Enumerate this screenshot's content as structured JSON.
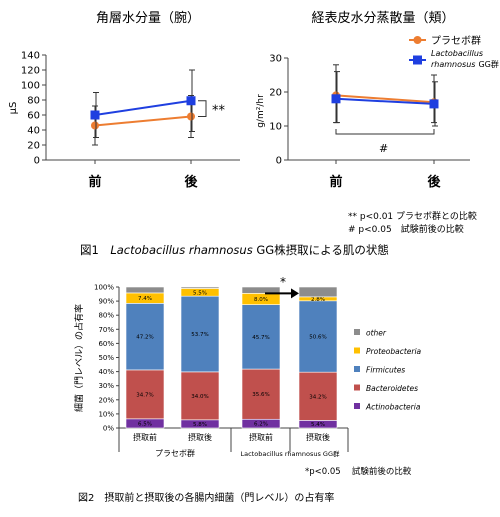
{
  "chart_data": [
    {
      "type": "line",
      "title": "角層水分量（腕）",
      "xlabel": "",
      "ylabel": "μS",
      "categories": [
        "前",
        "後"
      ],
      "ylim": [
        0,
        140
      ],
      "yticks": [
        0,
        20,
        40,
        60,
        80,
        100,
        120,
        140
      ],
      "series": [
        {
          "key": "placebo",
          "values": [
            46,
            58
          ],
          "err_low": [
            20,
            30
          ],
          "err_high": [
            72,
            86
          ],
          "color": "#ed7d31",
          "marker": "circle"
        },
        {
          "key": "lgg",
          "values": [
            60,
            79
          ],
          "err_low": [
            30,
            38
          ],
          "err_high": [
            90,
            120
          ],
          "color": "#1f3fe0",
          "marker": "square"
        }
      ],
      "annotation": "**"
    },
    {
      "type": "line",
      "title": "経表皮水分蒸散量（頬）",
      "xlabel": "",
      "ylabel": "g/m²/hr",
      "categories": [
        "前",
        "後"
      ],
      "ylim": [
        0,
        30
      ],
      "yticks": [
        0,
        10,
        20,
        30
      ],
      "legend_position": "top-right",
      "series": [
        {
          "key": "placebo",
          "name": "プラセボ群",
          "values": [
            19,
            17
          ],
          "err_low": [
            11,
            11
          ],
          "err_high": [
            28,
            25
          ],
          "color": "#ed7d31",
          "marker": "circle"
        },
        {
          "key": "lgg",
          "name": "Lactobacillus rhamnosus GG群",
          "name_line1": "Lactobacillus",
          "name_line2": "rhamnosus",
          "name_suffix": "GG群",
          "values": [
            18,
            16.5
          ],
          "err_low": [
            11,
            10
          ],
          "err_high": [
            26,
            23
          ],
          "color": "#1f3fe0",
          "marker": "square"
        }
      ],
      "annotation": "#"
    },
    {
      "type": "bar",
      "stacked": true,
      "ylabel": "細菌（門レベル）の占有率",
      "ylim": [
        0,
        100
      ],
      "yticks": [
        "0%",
        "10%",
        "20%",
        "30%",
        "40%",
        "50%",
        "60%",
        "70%",
        "80%",
        "90%",
        "100%"
      ],
      "categories": [
        "摂取前",
        "摂取後",
        "摂取前",
        "摂取後"
      ],
      "groups": [
        "プラセボ群",
        "Lactobacillus rhamnosus GG群"
      ],
      "series": [
        {
          "name": "Actinobacteria",
          "color": "#7030a0",
          "values": [
            6.5,
            5.8,
            6.2,
            5.4
          ],
          "labels": [
            "6.5%",
            "5.8%",
            "6.2%",
            "5.4%"
          ]
        },
        {
          "name": "Bacteroidetes",
          "color": "#c0504d",
          "values": [
            34.7,
            34.0,
            35.6,
            34.2
          ],
          "labels": [
            "34.7%",
            "34.0%",
            "35.6%",
            "34.2%"
          ]
        },
        {
          "name": "Firmicutes",
          "color": "#4f81bd",
          "values": [
            47.2,
            53.7,
            45.7,
            50.6
          ],
          "labels": [
            "47.2%",
            "53.7%",
            "45.7%",
            "50.6%"
          ]
        },
        {
          "name": "Proteobacteria",
          "color": "#ffc000",
          "values": [
            7.4,
            5.5,
            8.0,
            2.8
          ],
          "labels": [
            "7.4%",
            "5.5%",
            "8.0%",
            "2.8%"
          ]
        },
        {
          "name": "other",
          "color": "#8c8c8c",
          "values": [
            4.2,
            1.0,
            4.5,
            7.0
          ]
        }
      ],
      "annotation": "*"
    }
  ],
  "notes": {
    "fig1_note1": "** p<0.01 プラセボ群との比較",
    "fig1_note2": "# p<0.05　試験前後の比較",
    "fig2_note": "*p<0.05　 試験前後の比較"
  },
  "captions": {
    "fig1_prefix": "図1　",
    "fig1_italic": "Lactobacillus rhamnosus",
    "fig1_suffix": " GG株摂取による肌の状態",
    "fig2": "図2　摂取前と摂取後の各腸内細菌（門レベル）の占有率"
  }
}
